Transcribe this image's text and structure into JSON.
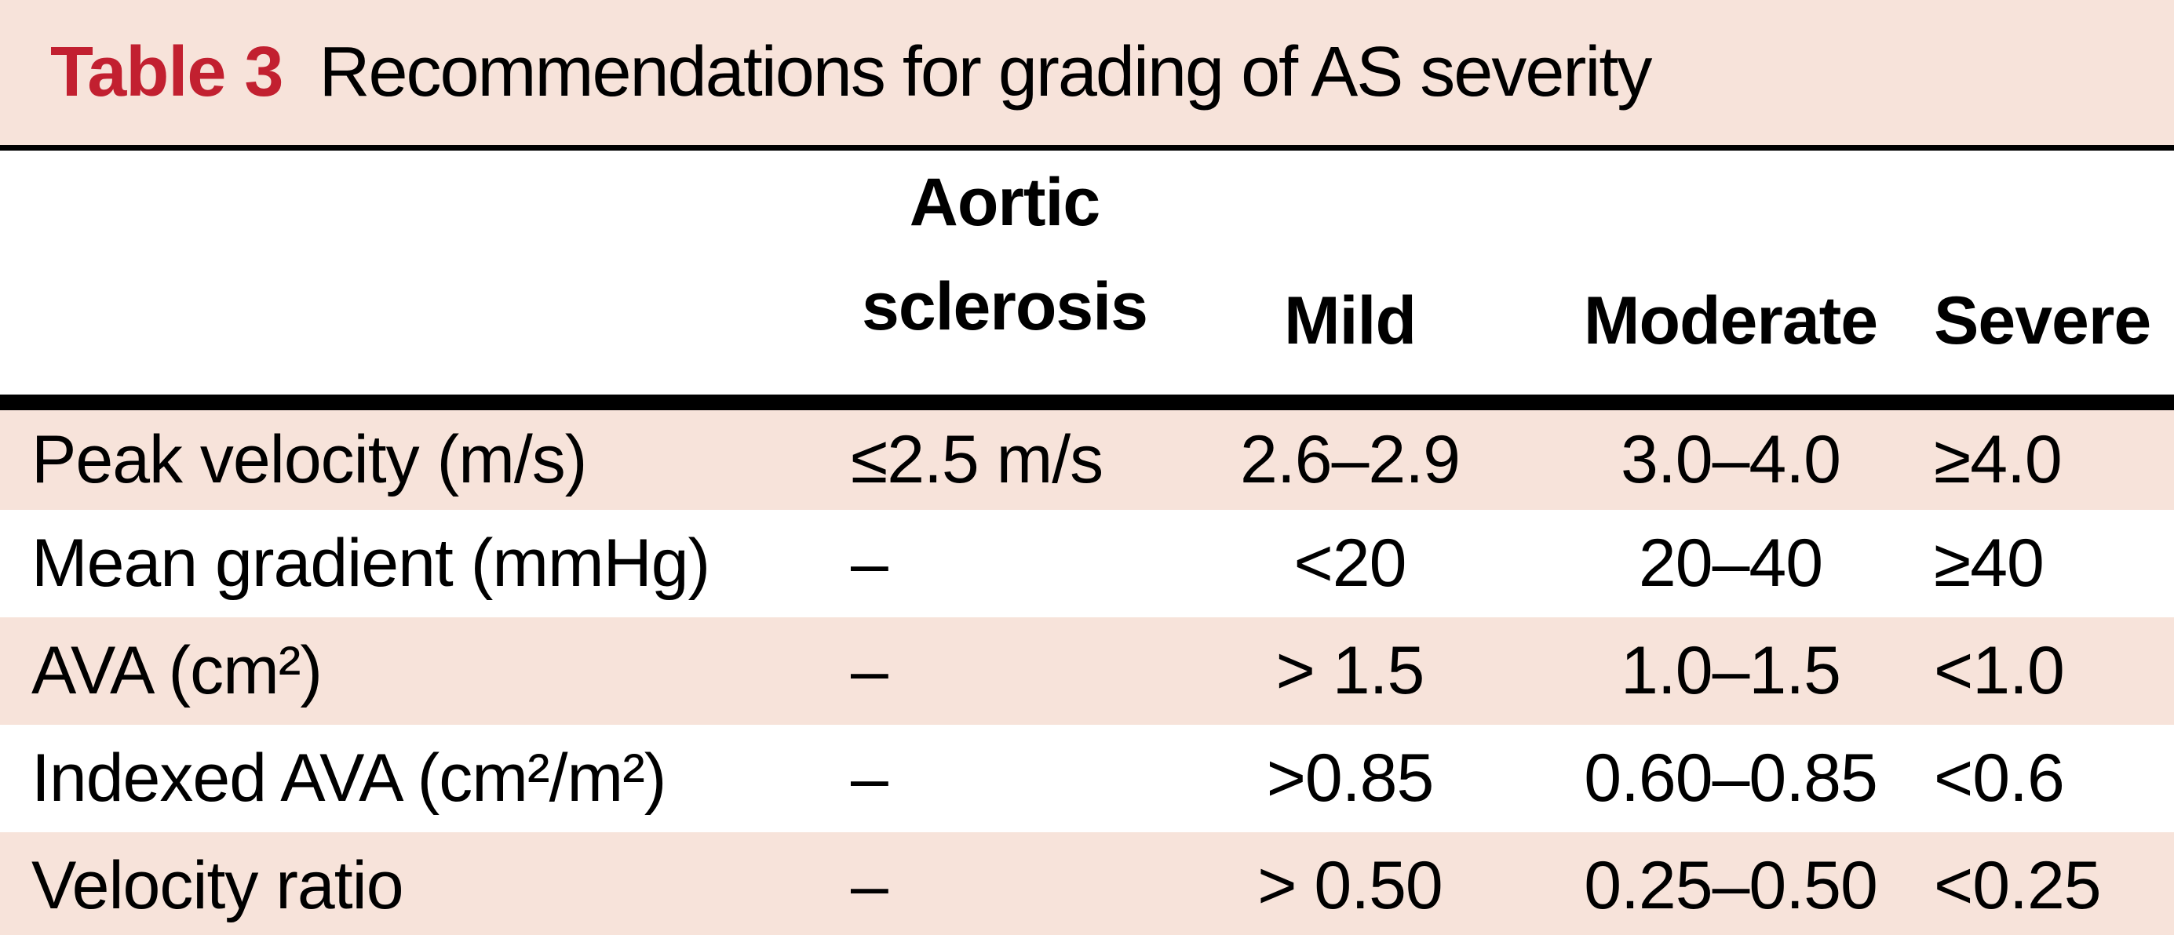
{
  "table": {
    "label": "Table 3",
    "title": "Recommendations for grading of AS severity",
    "headers": {
      "aortic_line1": "Aortic",
      "aortic_line2": "sclerosis",
      "mild": "Mild",
      "moderate": "Moderate",
      "severe": "Severe"
    },
    "rows": [
      {
        "parameter": "Peak velocity (m/s)",
        "aortic_sclerosis": "≤2.5 m/s",
        "mild": "2.6–2.9",
        "moderate": "3.0–4.0",
        "severe": "≥4.0"
      },
      {
        "parameter": "Mean gradient (mmHg)",
        "aortic_sclerosis": "–",
        "mild": "<20",
        "moderate": "20–40",
        "severe": "≥40"
      },
      {
        "parameter": "AVA (cm²)",
        "aortic_sclerosis": "–",
        "mild": "> 1.5",
        "moderate": "1.0–1.5",
        "severe": "<1.0"
      },
      {
        "parameter": "Indexed AVA (cm²/m²)",
        "aortic_sclerosis": "–",
        "mild": ">0.85",
        "moderate": "0.60–0.85",
        "severe": "<0.6"
      },
      {
        "parameter": "Velocity ratio",
        "aortic_sclerosis": "–",
        "mild": "> 0.50",
        "moderate": "0.25–0.50",
        "severe": "<0.25"
      }
    ],
    "colors": {
      "band_pink": "#f7e3da",
      "label_red": "#c22030",
      "rule_black": "#000000"
    }
  }
}
